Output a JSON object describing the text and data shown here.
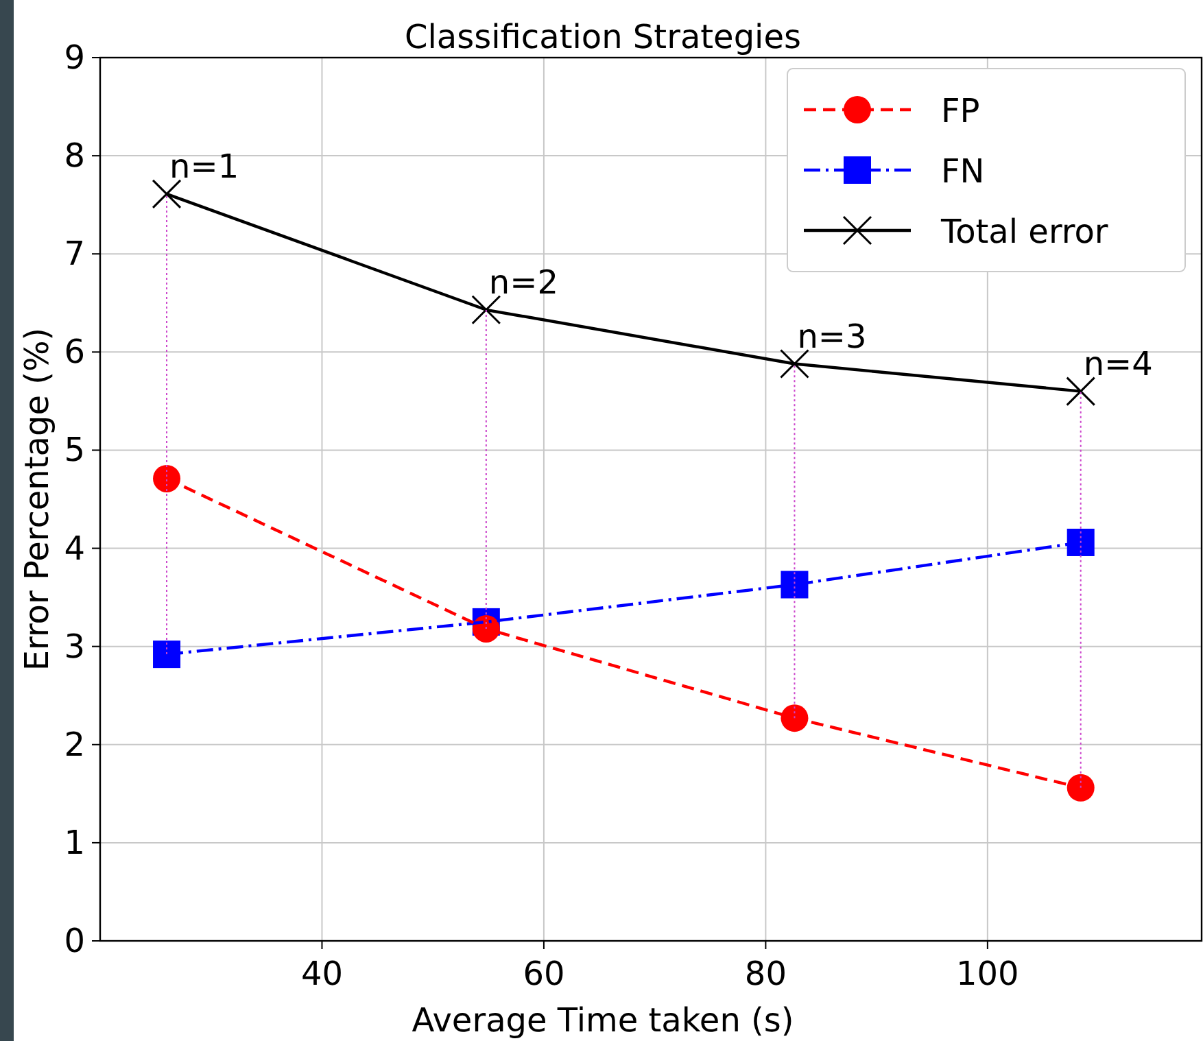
{
  "chart_data": {
    "type": "line",
    "title": "Classification Strategies",
    "xlabel": "Average Time taken (s)",
    "ylabel": "Error Percentage (%)",
    "x": [
      26,
      54.8,
      82.6,
      108.4
    ],
    "xlim": [
      20,
      119.3
    ],
    "ylim": [
      0,
      9
    ],
    "xticks": [
      40,
      60,
      80,
      100
    ],
    "yticks": [
      0,
      1,
      2,
      3,
      4,
      5,
      6,
      7,
      8,
      9
    ],
    "grid": true,
    "legend": "top right",
    "series": [
      {
        "name": "FP",
        "color": "#ff0000",
        "values": [
          4.71,
          3.18,
          2.27,
          1.56
        ],
        "marker": "circle",
        "line_style": "dashed"
      },
      {
        "name": "FN",
        "color": "#0000ff",
        "values": [
          2.92,
          3.25,
          3.63,
          4.06
        ],
        "marker": "square",
        "line_style": "dashdot"
      },
      {
        "name": "Total error",
        "color": "#000000",
        "values": [
          7.61,
          6.43,
          5.88,
          5.6
        ],
        "marker": "cross",
        "line_style": "solid"
      },
      {
        "color": "#cc44cc",
        "x": [
          26,
          26
        ],
        "values": [
          2.92,
          7.61
        ],
        "line_style": "dotted"
      },
      {
        "color": "#cc44cc",
        "x": [
          54.8,
          54.8
        ],
        "values": [
          3.18,
          6.43
        ],
        "line_style": "dotted"
      },
      {
        "color": "#cc44cc",
        "x": [
          82.6,
          82.6
        ],
        "values": [
          2.27,
          5.88
        ],
        "line_style": "dotted"
      },
      {
        "color": "#cc44cc",
        "x": [
          108.4,
          108.4
        ],
        "values": [
          1.56,
          5.6
        ],
        "line_style": "dotted"
      }
    ],
    "annotations": [
      {
        "text": "n=1",
        "x": 26,
        "y": 7.61
      },
      {
        "text": "n=2",
        "x": 54.8,
        "y": 6.43
      },
      {
        "text": "n=3",
        "x": 82.6,
        "y": 5.88
      },
      {
        "text": "n=4",
        "x": 108.4,
        "y": 5.6
      }
    ]
  }
}
